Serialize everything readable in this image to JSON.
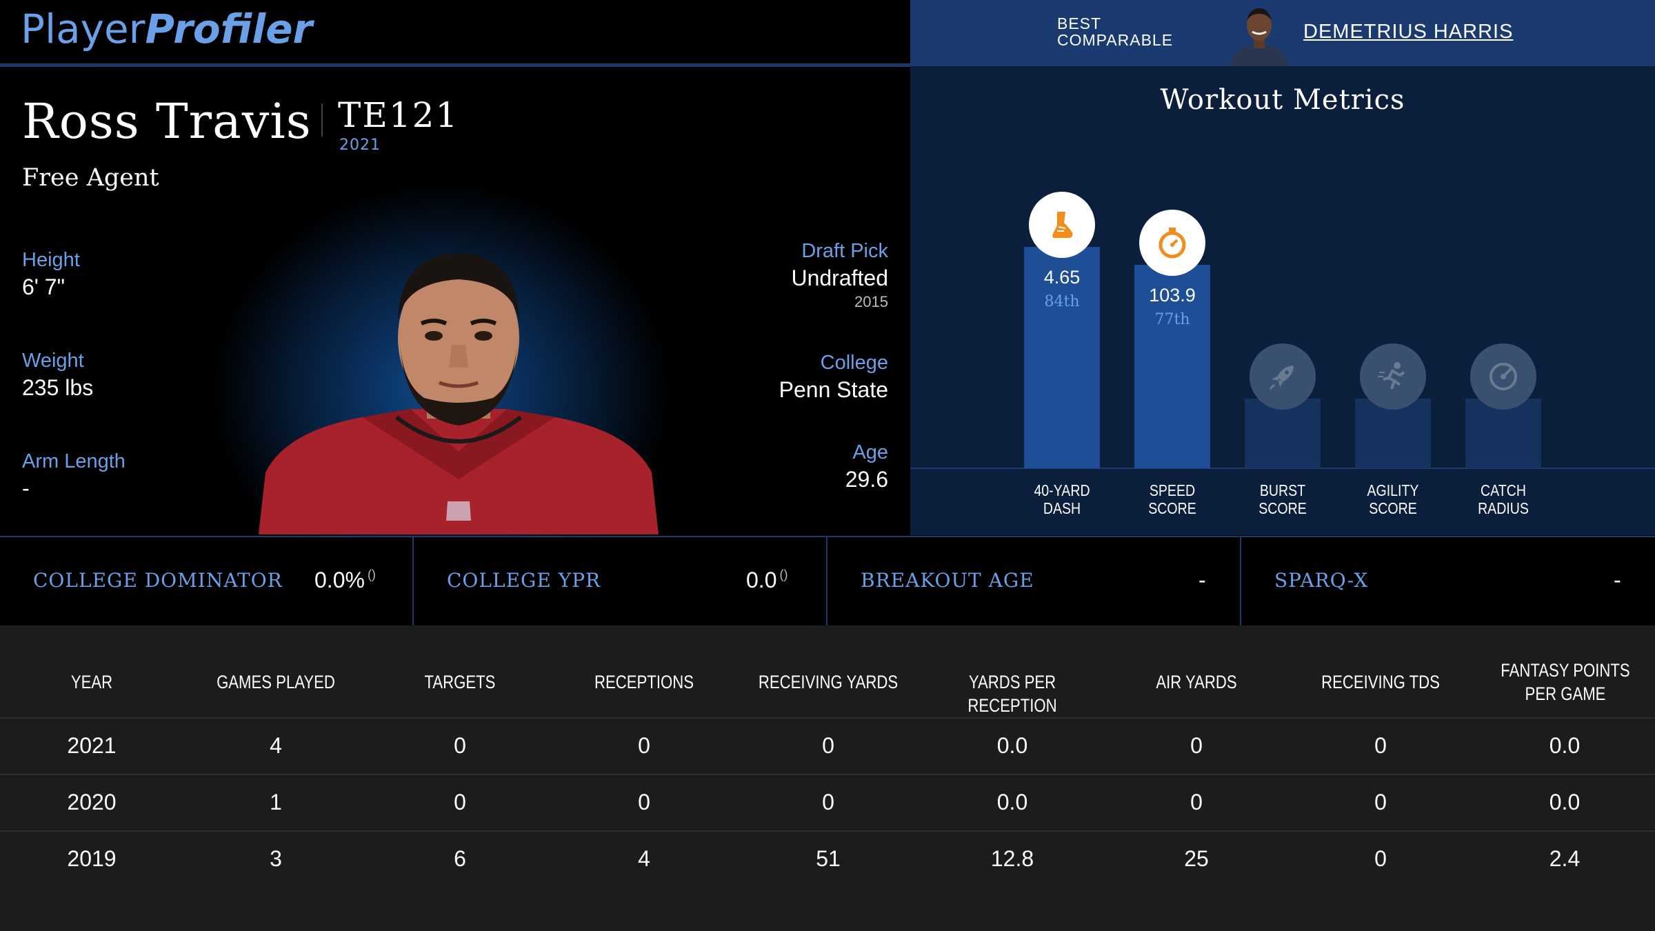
{
  "brand": {
    "part1": "Player",
    "part2": "Profiler"
  },
  "comparable": {
    "label_line1": "BEST",
    "label_line2": "COMPARABLE",
    "name": "DEMETRIUS HARRIS"
  },
  "player": {
    "name": "Ross Travis",
    "position_rank": "TE121",
    "season": "2021",
    "team": "Free Agent",
    "height_label": "Height",
    "height": "6' 7\"",
    "weight_label": "Weight",
    "weight": "235 lbs",
    "arm_label": "Arm Length",
    "arm": "-",
    "draft_label": "Draft Pick",
    "draft": "Undrafted",
    "draft_year": "2015",
    "college_label": "College",
    "college": "Penn State",
    "age_label": "Age",
    "age": "29.6"
  },
  "workout": {
    "title": "Workout Metrics",
    "metrics": [
      {
        "line1": "40-YARD",
        "line2": "DASH",
        "value": "4.65",
        "percentile": "84th",
        "icon": "shoe-icon",
        "score": 84
      },
      {
        "line1": "SPEED",
        "line2": "SCORE",
        "value": "103.9",
        "percentile": "77th",
        "icon": "stopwatch-icon",
        "score": 77
      },
      {
        "line1": "BURST",
        "line2": "SCORE",
        "value": "",
        "percentile": "",
        "icon": "rocket-icon",
        "score": null
      },
      {
        "line1": "AGILITY",
        "line2": "SCORE",
        "value": "",
        "percentile": "",
        "icon": "runner-icon",
        "score": null
      },
      {
        "line1": "CATCH",
        "line2": "RADIUS",
        "value": "",
        "percentile": "",
        "icon": "target-icon",
        "score": null
      }
    ]
  },
  "college_stats": [
    {
      "label": "COLLEGE DOMINATOR",
      "value": "0.0%",
      "paren": "()"
    },
    {
      "label": "COLLEGE YPR",
      "value": "0.0",
      "paren": "()"
    },
    {
      "label": "BREAKOUT AGE",
      "value": "-",
      "paren": ""
    },
    {
      "label": "SPARQ-X",
      "value": "-",
      "paren": ""
    }
  ],
  "table": {
    "headers": [
      "YEAR",
      "GAMES PLAYED",
      "TARGETS",
      "RECEPTIONS",
      "RECEIVING YARDS",
      "YARDS PER RECEPTION",
      "AIR YARDS",
      "RECEIVING TDS",
      "FANTASY POINTS PER GAME"
    ],
    "rows": [
      [
        "2021",
        "4",
        "0",
        "0",
        "0",
        "0.0",
        "0",
        "0",
        "0.0"
      ],
      [
        "2020",
        "1",
        "0",
        "0",
        "0",
        "0.0",
        "0",
        "0",
        "0.0"
      ],
      [
        "2019",
        "3",
        "6",
        "4",
        "51",
        "12.8",
        "25",
        "0",
        "2.4"
      ]
    ]
  },
  "colors": {
    "accent": "#6aa0e8",
    "bar": "#1e4f96",
    "icon_orange": "#f28c1a",
    "banner": "#1a3a70"
  }
}
